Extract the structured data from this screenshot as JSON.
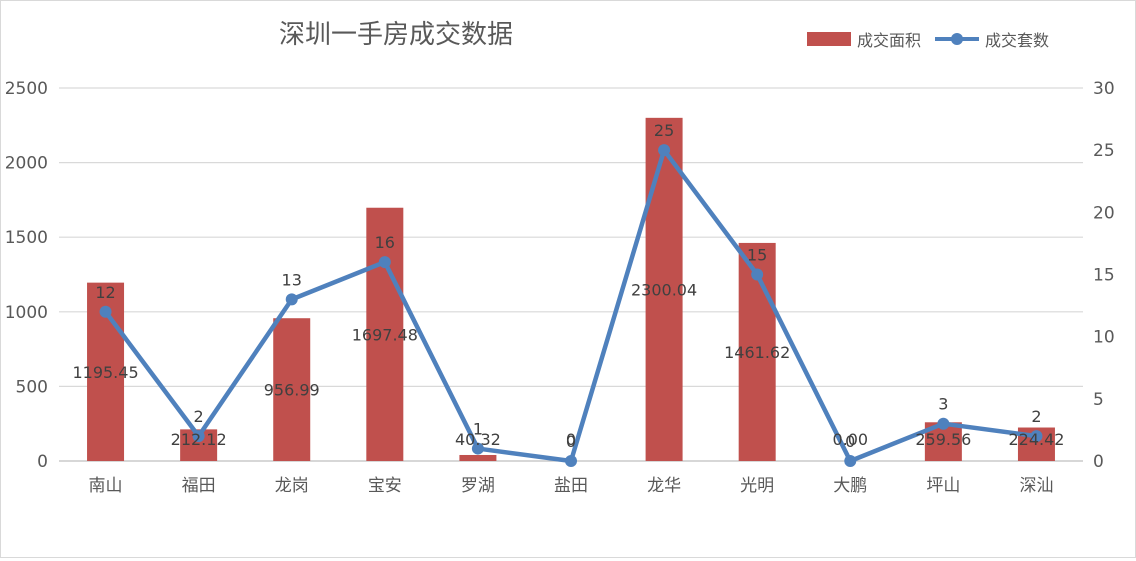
{
  "chart_data": {
    "type": "bar+line",
    "title": "深圳一手房成交数据",
    "categories": [
      "南山",
      "福田",
      "龙岗",
      "宝安",
      "罗湖",
      "盐田",
      "龙华",
      "光明",
      "大鹏",
      "坪山",
      "深汕"
    ],
    "series": [
      {
        "name": "成交面积",
        "type": "bar",
        "axis": "left",
        "color": "#c0504d",
        "values": [
          1195.45,
          212.12,
          956.99,
          1697.48,
          40.32,
          0,
          2300.04,
          1461.62,
          0,
          259.56,
          224.42
        ],
        "labels": [
          "1195.45",
          "212.12",
          "956.99",
          "1697.48",
          "40.32",
          "0",
          "2300.04",
          "1461.62",
          "0.00",
          "259.56",
          "224.42"
        ]
      },
      {
        "name": "成交套数",
        "type": "line",
        "axis": "right",
        "color": "#4f81bd",
        "values": [
          12,
          2,
          13,
          16,
          1,
          0,
          25,
          15,
          0,
          3,
          2
        ],
        "labels": [
          "12",
          "2",
          "13",
          "16",
          "1",
          "0",
          "25",
          "15",
          "0",
          "3",
          "2"
        ]
      }
    ],
    "y_left": {
      "min": 0,
      "max": 2500,
      "ticks": [
        0,
        500,
        1000,
        1500,
        2000,
        2500
      ]
    },
    "y_right": {
      "min": 0,
      "max": 30,
      "ticks": [
        0,
        5,
        10,
        15,
        20,
        25,
        30
      ]
    },
    "grid": true,
    "legend_position": "top-right"
  }
}
